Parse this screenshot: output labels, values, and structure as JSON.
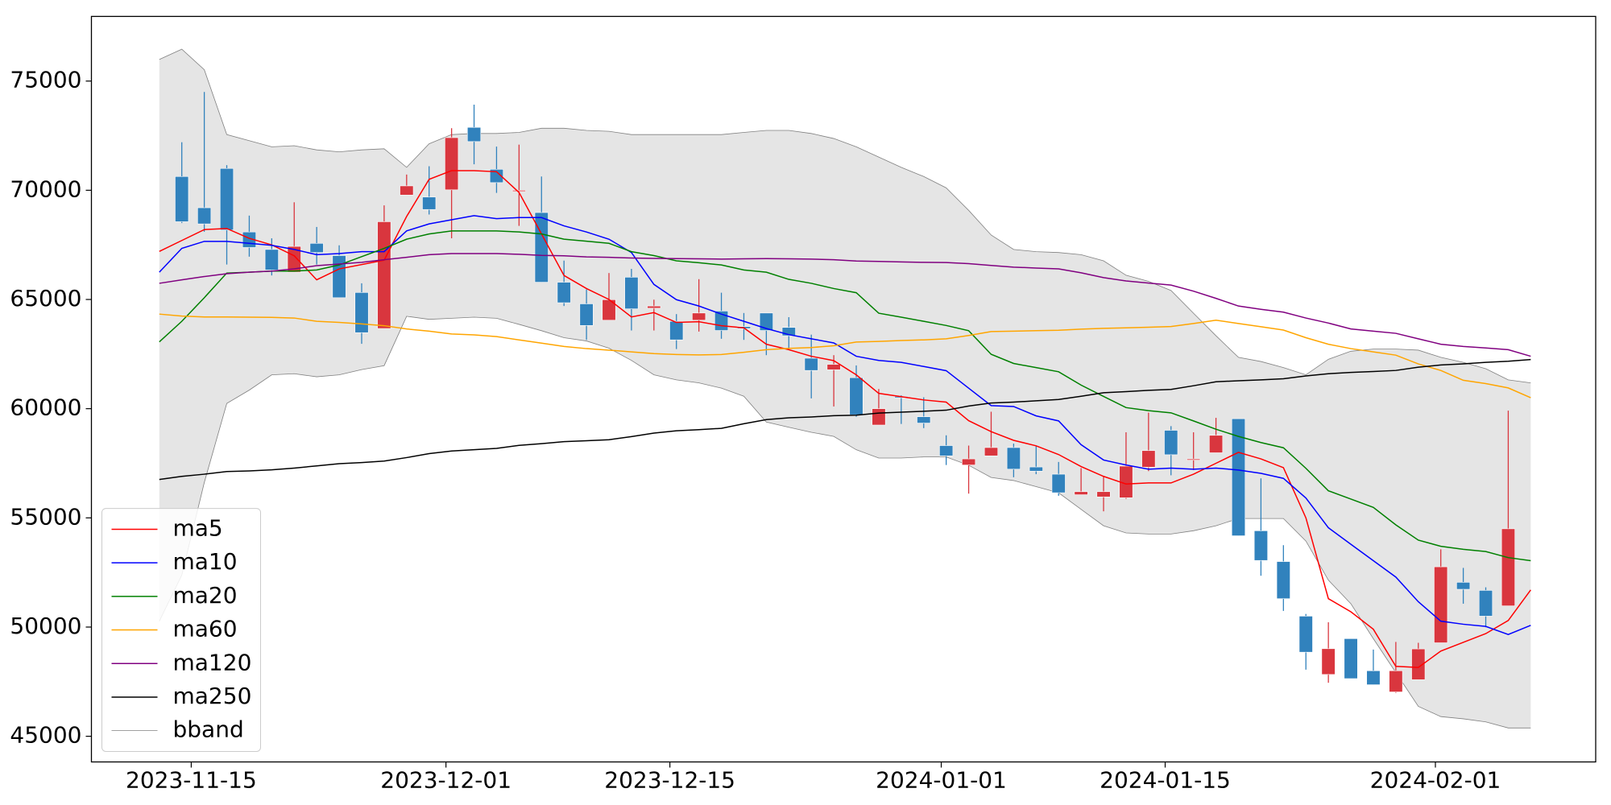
{
  "chart_data": {
    "type": "candlestick",
    "categories": [
      null,
      null,
      null,
      null,
      null,
      null,
      null,
      null,
      null,
      null,
      null,
      null,
      null,
      null,
      null,
      null,
      null,
      null,
      null,
      null,
      null,
      null,
      null,
      null,
      null,
      null,
      null,
      null,
      null,
      null,
      null,
      null,
      null,
      null,
      null,
      null,
      null,
      null,
      null,
      null,
      null,
      null,
      null,
      null,
      null,
      null,
      null,
      null,
      null,
      null,
      null,
      null,
      null,
      null,
      null,
      null,
      null,
      null,
      null,
      null,
      null,
      null
    ],
    "open": [
      null,
      70630,
      69200,
      71000,
      68090,
      67290,
      66250,
      67570,
      67010,
      65320,
      63670,
      69780,
      69690,
      70020,
      72880,
      70960,
      69960,
      68980,
      65790,
      64800,
      64050,
      66020,
      64600,
      64000,
      64050,
      64470,
      63760,
      64380,
      63720,
      62310,
      61780,
      61420,
      59250,
      60560,
      59630,
      58310,
      57420,
      57840,
      58220,
      57330,
      57000,
      56060,
      55960,
      55920,
      57320,
      59010,
      57650,
      57980,
      59540,
      54410,
      53000,
      50500,
      47830,
      49470,
      48000,
      47030,
      47590,
      49280,
      52050,
      51680,
      50970,
      null
    ],
    "high": [
      null,
      72200,
      74500,
      71150,
      68840,
      67800,
      69450,
      68320,
      67480,
      65740,
      69310,
      70720,
      71100,
      72840,
      73920,
      72000,
      72090,
      70630,
      66780,
      65460,
      66210,
      66400,
      64990,
      64330,
      65930,
      65310,
      64380,
      64380,
      64190,
      63390,
      62450,
      61980,
      60900,
      60610,
      60520,
      58780,
      58310,
      59860,
      58400,
      58310,
      57560,
      57280,
      56900,
      58920,
      59820,
      59200,
      58920,
      59580,
      59540,
      56810,
      53750,
      50600,
      50220,
      49470,
      48970,
      49320,
      49280,
      53560,
      52710,
      51820,
      59910,
      null
    ],
    "low": [
      null,
      68500,
      68100,
      66600,
      66960,
      66100,
      66250,
      66600,
      65080,
      62970,
      63670,
      69780,
      68890,
      67800,
      71190,
      69880,
      68370,
      65790,
      64700,
      63150,
      64050,
      63580,
      63580,
      62730,
      63530,
      63200,
      63150,
      62450,
      62730,
      60470,
      60100,
      59630,
      59250,
      59300,
      59110,
      57420,
      56110,
      57840,
      56860,
      57000,
      56010,
      56060,
      55300,
      55870,
      57140,
      56950,
      57190,
      57980,
      54180,
      52350,
      50740,
      48050,
      47450,
      47640,
      47360,
      46990,
      47590,
      49280,
      51070,
      49990,
      50970,
      null
    ],
    "close": [
      null,
      68560,
      68460,
      68180,
      67380,
      66350,
      67430,
      67150,
      65080,
      63480,
      68560,
      70200,
      69120,
      72410,
      72230,
      70350,
      70000,
      65790,
      64850,
      63810,
      64990,
      64570,
      64700,
      63150,
      64380,
      63580,
      63670,
      63580,
      63340,
      61750,
      62030,
      59720,
      60000,
      60500,
      59340,
      57840,
      57700,
      58220,
      57230,
      57140,
      56150,
      56200,
      56200,
      57370,
      58080,
      57890,
      57700,
      58780,
      54180,
      53050,
      51300,
      48850,
      49010,
      47640,
      47360,
      48000,
      49000,
      52760,
      51730,
      50500,
      54500,
      null
    ],
    "up_color": "#d9363e",
    "down_color": "#3182bd",
    "series": [
      {
        "name": "ma5",
        "color": "red",
        "values": [
          67200,
          67700,
          68200,
          68250,
          67800,
          67500,
          67000,
          65900,
          66400,
          66600,
          66800,
          68800,
          70500,
          70900,
          70900,
          70850,
          69900,
          68000,
          66100,
          65500,
          65000,
          64200,
          64400,
          63950,
          63980,
          63800,
          63700,
          62950,
          62700,
          62400,
          62200,
          61550,
          60700,
          60550,
          60400,
          60300,
          59450,
          58950,
          58550,
          58300,
          57900,
          57350,
          56900,
          56550,
          56600,
          56600,
          57000,
          57500,
          58000,
          57700,
          57300,
          55000,
          51300,
          50700,
          49900,
          48200,
          48150,
          48900,
          49300,
          49700,
          50300,
          51700
        ]
      },
      {
        "name": "ma10",
        "color": "blue",
        "values": [
          66250,
          67340,
          67660,
          67660,
          67570,
          67480,
          67290,
          67050,
          67100,
          67190,
          67190,
          68140,
          68460,
          68650,
          68840,
          68700,
          68750,
          68750,
          68370,
          68090,
          67760,
          67150,
          65690,
          64990,
          64700,
          64330,
          64000,
          63670,
          63390,
          63200,
          63010,
          62400,
          62210,
          62120,
          61930,
          61740,
          60940,
          60140,
          60100,
          59670,
          59440,
          58350,
          57650,
          57420,
          57230,
          57280,
          57230,
          57280,
          57190,
          57040,
          56810,
          55910,
          54550,
          53790,
          53040,
          52290,
          51160,
          50270,
          50130,
          50030,
          49660,
          50080
        ]
      },
      {
        "name": "ma20",
        "color": "green",
        "values": [
          63060,
          64000,
          65080,
          66210,
          66250,
          66300,
          66300,
          66350,
          66580,
          66960,
          67340,
          67760,
          68000,
          68140,
          68140,
          68140,
          68090,
          68000,
          67760,
          67670,
          67570,
          67190,
          67010,
          66770,
          66680,
          66580,
          66350,
          66250,
          65920,
          65740,
          65500,
          65310,
          64370,
          64190,
          64000,
          63810,
          63570,
          62490,
          62070,
          61880,
          61690,
          61080,
          60560,
          60050,
          59910,
          59810,
          59440,
          59060,
          58730,
          58450,
          58210,
          57270,
          56240,
          55860,
          55480,
          54680,
          53980,
          53700,
          53560,
          53460,
          53180,
          53040
        ]
      },
      {
        "name": "ma60",
        "color": "orange",
        "values": [
          64330,
          64240,
          64200,
          64200,
          64190,
          64180,
          64150,
          64000,
          63950,
          63880,
          63800,
          63650,
          63550,
          63420,
          63380,
          63300,
          63150,
          63000,
          62850,
          62750,
          62680,
          62600,
          62520,
          62480,
          62460,
          62480,
          62580,
          62700,
          62760,
          62800,
          62880,
          63050,
          63080,
          63120,
          63150,
          63200,
          63350,
          63530,
          63550,
          63570,
          63590,
          63640,
          63680,
          63700,
          63730,
          63760,
          63900,
          64050,
          63900,
          63750,
          63600,
          63250,
          62950,
          62750,
          62600,
          62450,
          62050,
          61750,
          61300,
          61150,
          60950,
          60500
        ]
      },
      {
        "name": "ma120",
        "color": "purple",
        "values": [
          65740,
          65900,
          66050,
          66180,
          66250,
          66300,
          66400,
          66550,
          66620,
          66700,
          66820,
          66930,
          67050,
          67100,
          67100,
          67100,
          67070,
          67020,
          67000,
          66950,
          66930,
          66900,
          66880,
          66870,
          66860,
          66850,
          66860,
          66870,
          66860,
          66850,
          66820,
          66760,
          66740,
          66720,
          66700,
          66690,
          66640,
          66560,
          66480,
          66440,
          66400,
          66220,
          66000,
          65850,
          65750,
          65660,
          65380,
          65050,
          64700,
          64550,
          64420,
          64150,
          63920,
          63650,
          63550,
          63450,
          63200,
          62950,
          62850,
          62780,
          62700,
          62400
        ]
      },
      {
        "name": "ma250",
        "color": "black",
        "values": [
          56760,
          56900,
          57000,
          57120,
          57150,
          57200,
          57280,
          57380,
          57480,
          57530,
          57600,
          57760,
          57940,
          58060,
          58120,
          58180,
          58320,
          58400,
          58490,
          58530,
          58580,
          58720,
          58880,
          58990,
          59040,
          59100,
          59310,
          59500,
          59580,
          59620,
          59680,
          59700,
          59800,
          59840,
          59880,
          59930,
          60120,
          60260,
          60300,
          60360,
          60420,
          60570,
          60730,
          60780,
          60840,
          60880,
          61050,
          61230,
          61280,
          61320,
          61370,
          61500,
          61600,
          61660,
          61700,
          61750,
          61900,
          62000,
          62050,
          62120,
          62170,
          62250
        ]
      }
    ],
    "band": {
      "name": "bband",
      "color": "gray",
      "fill": "#e5e5e5",
      "upper": [
        75990,
        76460,
        75520,
        72550,
        72270,
        71990,
        72040,
        71850,
        71760,
        71850,
        71900,
        71050,
        72130,
        72550,
        72600,
        72600,
        72650,
        72840,
        72840,
        72740,
        72700,
        72550,
        72550,
        72550,
        72550,
        72550,
        72650,
        72740,
        72740,
        72600,
        72370,
        71990,
        71520,
        71050,
        70630,
        70110,
        69080,
        67950,
        67290,
        67190,
        67150,
        67050,
        66770,
        66110,
        65830,
        65410,
        64370,
        63340,
        62350,
        62160,
        61880,
        61550,
        62260,
        62630,
        62730,
        62730,
        62680,
        62350,
        62120,
        61830,
        61320,
        61180
      ],
      "lower": [
        50270,
        52380,
        56620,
        60240,
        60850,
        61550,
        61600,
        61460,
        61550,
        61790,
        61970,
        64230,
        64090,
        64140,
        64190,
        64140,
        63860,
        63570,
        63250,
        63100,
        62770,
        62210,
        61550,
        61320,
        61180,
        60940,
        60570,
        59390,
        59150,
        58920,
        58730,
        58120,
        57740,
        57740,
        57790,
        57790,
        57410,
        56850,
        56710,
        56430,
        56150,
        55390,
        54640,
        54310,
        54260,
        54260,
        54410,
        54640,
        54970,
        54970,
        54970,
        53940,
        52150,
        51070,
        49470,
        47920,
        46370,
        45900,
        45800,
        45660,
        45380,
        45380
      ]
    },
    "xlim": [
      -3.02,
      63.89
    ],
    "xticks": [
      {
        "value": 1.42,
        "label": "2023-11-15"
      },
      {
        "value": 12.75,
        "label": "2023-12-01"
      },
      {
        "value": 22.71,
        "label": "2023-12-15"
      },
      {
        "value": 34.78,
        "label": "2024-01-01"
      },
      {
        "value": 44.74,
        "label": "2024-01-15"
      },
      {
        "value": 56.76,
        "label": "2024-02-01"
      }
    ],
    "ylim": [
      43825,
      77960
    ],
    "yticks": [
      45000,
      50000,
      55000,
      60000,
      65000,
      70000,
      75000
    ],
    "legend": "lower left"
  }
}
